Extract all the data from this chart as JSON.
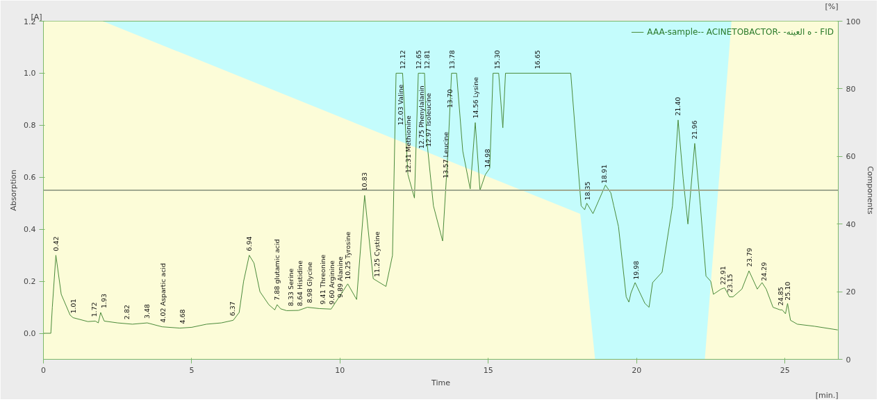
{
  "chart_data": {
    "type": "line",
    "xlabel": "Time",
    "ylabel": "Absorption",
    "y2label": "Components",
    "xlim": [
      0,
      26.8
    ],
    "xticks": [
      0,
      5,
      10,
      15,
      20,
      25
    ],
    "ylim": [
      -0.1,
      1.2
    ],
    "yticks": [
      {
        "value": 0,
        "label": "0.0"
      },
      0.2,
      0.4,
      0.6,
      0.8,
      {
        "value": 1,
        "label": "1.0"
      },
      1.2
    ],
    "y2lim": [
      0,
      100
    ],
    "y2ticks": [
      0,
      20,
      40,
      60,
      80,
      100
    ],
    "grid": false,
    "legend": "top right",
    "ref_lines": [
      {
        "axis": "y2",
        "value": 50,
        "label": null,
        "color": "#a0a890"
      }
    ],
    "series": [
      {
        "type": "area",
        "axis": "y2",
        "color": "#fcfcd8",
        "x": [
          0,
          2.0,
          18.1,
          18.6,
          22.3,
          23.2,
          26.8
        ],
        "values": [
          100,
          100,
          43,
          0,
          0,
          100,
          100
        ]
      },
      {
        "name": "AAA-sample-- ACINETOBACTOR- -ه العينه - FID",
        "color": "#4a8a3a",
        "x": [
          0,
          0.25,
          0.3,
          0.42,
          0.6,
          0.9,
          1.0,
          1.5,
          1.75,
          1.85,
          1.93,
          2.05,
          2.5,
          3.0,
          3.5,
          4.0,
          4.6,
          5.0,
          5.5,
          6.0,
          6.4,
          6.6,
          6.75,
          6.94,
          7.1,
          7.3,
          7.6,
          7.8,
          7.88,
          8.0,
          8.2,
          8.6,
          8.9,
          9.3,
          9.7,
          10.26,
          10.56,
          10.83,
          11.12,
          11.55,
          11.77,
          11.89,
          12.11,
          12.29,
          12.51,
          12.64,
          12.75,
          12.85,
          12.92,
          13.15,
          13.46,
          13.64,
          13.76,
          13.93,
          14.14,
          14.39,
          14.56,
          14.72,
          14.9,
          15.05,
          15.16,
          15.35,
          15.49,
          15.58,
          17.78,
          18.13,
          18.25,
          18.32,
          18.53,
          18.95,
          19.13,
          19.23,
          19.39,
          19.65,
          19.74,
          19.81,
          19.95,
          20.28,
          20.42,
          20.54,
          20.86,
          21.21,
          21.4,
          21.57,
          21.73,
          21.96,
          22.15,
          22.34,
          22.5,
          22.59,
          22.85,
          22.97,
          23.13,
          23.25,
          23.55,
          23.79,
          24.07,
          24.23,
          24.37,
          24.6,
          24.84,
          24.91,
          25.02,
          25.09,
          25.19,
          25.42,
          26.0,
          26.78
        ],
        "values": [
          0,
          0,
          0.1,
          0.3,
          0.15,
          0.07,
          0.06,
          0.045,
          0.047,
          0.04,
          0.08,
          0.047,
          0.04,
          0.035,
          0.04,
          0.025,
          0.02,
          0.023,
          0.035,
          0.04,
          0.05,
          0.08,
          0.2,
          0.3,
          0.27,
          0.16,
          0.11,
          0.09,
          0.11,
          0.094,
          0.087,
          0.088,
          0.1,
          0.095,
          0.093,
          0.19,
          0.13,
          0.53,
          0.21,
          0.18,
          0.3,
          1.0,
          1.0,
          0.61,
          0.52,
          1.0,
          1.0,
          1.0,
          0.75,
          0.49,
          0.355,
          0.7,
          1.0,
          1.0,
          0.7,
          0.555,
          0.81,
          0.55,
          0.61,
          0.635,
          1.0,
          1.0,
          0.79,
          1.0,
          1.0,
          0.49,
          0.475,
          0.5,
          0.46,
          0.57,
          0.54,
          0.49,
          0.41,
          0.14,
          0.12,
          0.155,
          0.195,
          0.115,
          0.1,
          0.195,
          0.235,
          0.49,
          0.82,
          0.595,
          0.42,
          0.73,
          0.49,
          0.22,
          0.2,
          0.15,
          0.17,
          0.175,
          0.14,
          0.14,
          0.17,
          0.24,
          0.17,
          0.195,
          0.17,
          0.1,
          0.09,
          0.09,
          0.075,
          0.115,
          0.05,
          0.035,
          0.027,
          0.013
        ]
      }
    ],
    "annotations": [
      "[A]",
      "[%]",
      "[min.]",
      {
        "text": "0.42",
        "x": 0.42,
        "y": 0.3
      },
      {
        "text": "1.01",
        "x": 1.01,
        "y": 0.06
      },
      {
        "text": "1.72",
        "x": 1.72,
        "y": 0.047
      },
      {
        "text": "1.93",
        "x": 1.93,
        "y": 0.08
      },
      {
        "text": "2.82",
        "x": 2.82,
        "y": 0.037
      },
      {
        "text": "3.48",
        "x": 3.48,
        "y": 0.04
      },
      {
        "text": "4.02 Aspartic acid",
        "x": 4.02,
        "y": 0.025
      },
      {
        "text": "4.68",
        "x": 4.68,
        "y": 0.02
      },
      {
        "text": "6.37",
        "x": 6.37,
        "y": 0.05
      },
      {
        "text": "6.94",
        "x": 6.94,
        "y": 0.3
      },
      {
        "text": "7.88 glutamic acid",
        "x": 7.88,
        "y": 0.11
      },
      {
        "text": "8.33 Serine",
        "x": 8.33,
        "y": 0.088
      },
      {
        "text": "8.64 Histidine",
        "x": 8.64,
        "y": 0.088
      },
      {
        "text": "8.98 Glycine",
        "x": 8.98,
        "y": 0.1
      },
      {
        "text": "9.41 Threonine",
        "x": 9.41,
        "y": 0.095
      },
      {
        "text": "9.60 Arginine",
        "x": 9.6,
        "y": 0.094
      },
      {
        "text": "9.89 Alanine",
        "x": 9.89,
        "y": 0.12
      },
      {
        "text": "10.25 Tyrosine",
        "x": 10.25,
        "y": 0.19
      },
      {
        "text": "10.83",
        "x": 10.83,
        "y": 0.53
      },
      {
        "text": "11.25 Cystine",
        "x": 11.25,
        "y": 0.2
      },
      {
        "text": "12.03 Valine",
        "x": 12.03,
        "y": 1.0
      },
      {
        "text": "12.12",
        "x": 12.12,
        "y": 1.0
      },
      {
        "text": "12.31 Methionine",
        "x": 12.31,
        "y": 0.6
      },
      {
        "text": "12.65",
        "x": 12.65,
        "y": 1.0
      },
      {
        "text": "12.75 Phenylalanin",
        "x": 12.75,
        "y": 1.0
      },
      {
        "text": "12.81",
        "x": 12.81,
        "y": 1.0
      },
      {
        "text": "12.97 Isoleucine",
        "x": 12.97,
        "y": 0.7
      },
      {
        "text": "13.57 Leucine",
        "x": 13.57,
        "y": 0.58
      },
      {
        "text": "13.70",
        "x": 13.7,
        "y": 0.85
      },
      {
        "text": "13.78",
        "x": 13.78,
        "y": 1.0
      },
      {
        "text": "14.56 Lysine",
        "x": 14.56,
        "y": 0.81
      },
      {
        "text": "14.98",
        "x": 14.98,
        "y": 0.62
      },
      {
        "text": "15.30",
        "x": 15.3,
        "y": 1.0
      },
      {
        "text": "16.65",
        "x": 16.65,
        "y": 1.0
      },
      {
        "text": "18.35",
        "x": 18.35,
        "y": 0.495
      },
      {
        "text": "18.91",
        "x": 18.91,
        "y": 0.56
      },
      {
        "text": "19.98",
        "x": 19.98,
        "y": 0.19
      },
      {
        "text": "21.40",
        "x": 21.4,
        "y": 0.82
      },
      {
        "text": "21.96",
        "x": 21.96,
        "y": 0.73
      },
      {
        "text": "22.91",
        "x": 22.91,
        "y": 0.17
      },
      {
        "text": "23.15",
        "x": 23.15,
        "y": 0.14
      },
      {
        "text": "23.79",
        "x": 23.79,
        "y": 0.24
      },
      {
        "text": "24.29",
        "x": 24.29,
        "y": 0.185
      },
      {
        "text": "24.85",
        "x": 24.85,
        "y": 0.09
      },
      {
        "text": "25.10",
        "x": 25.1,
        "y": 0.11
      }
    ]
  }
}
